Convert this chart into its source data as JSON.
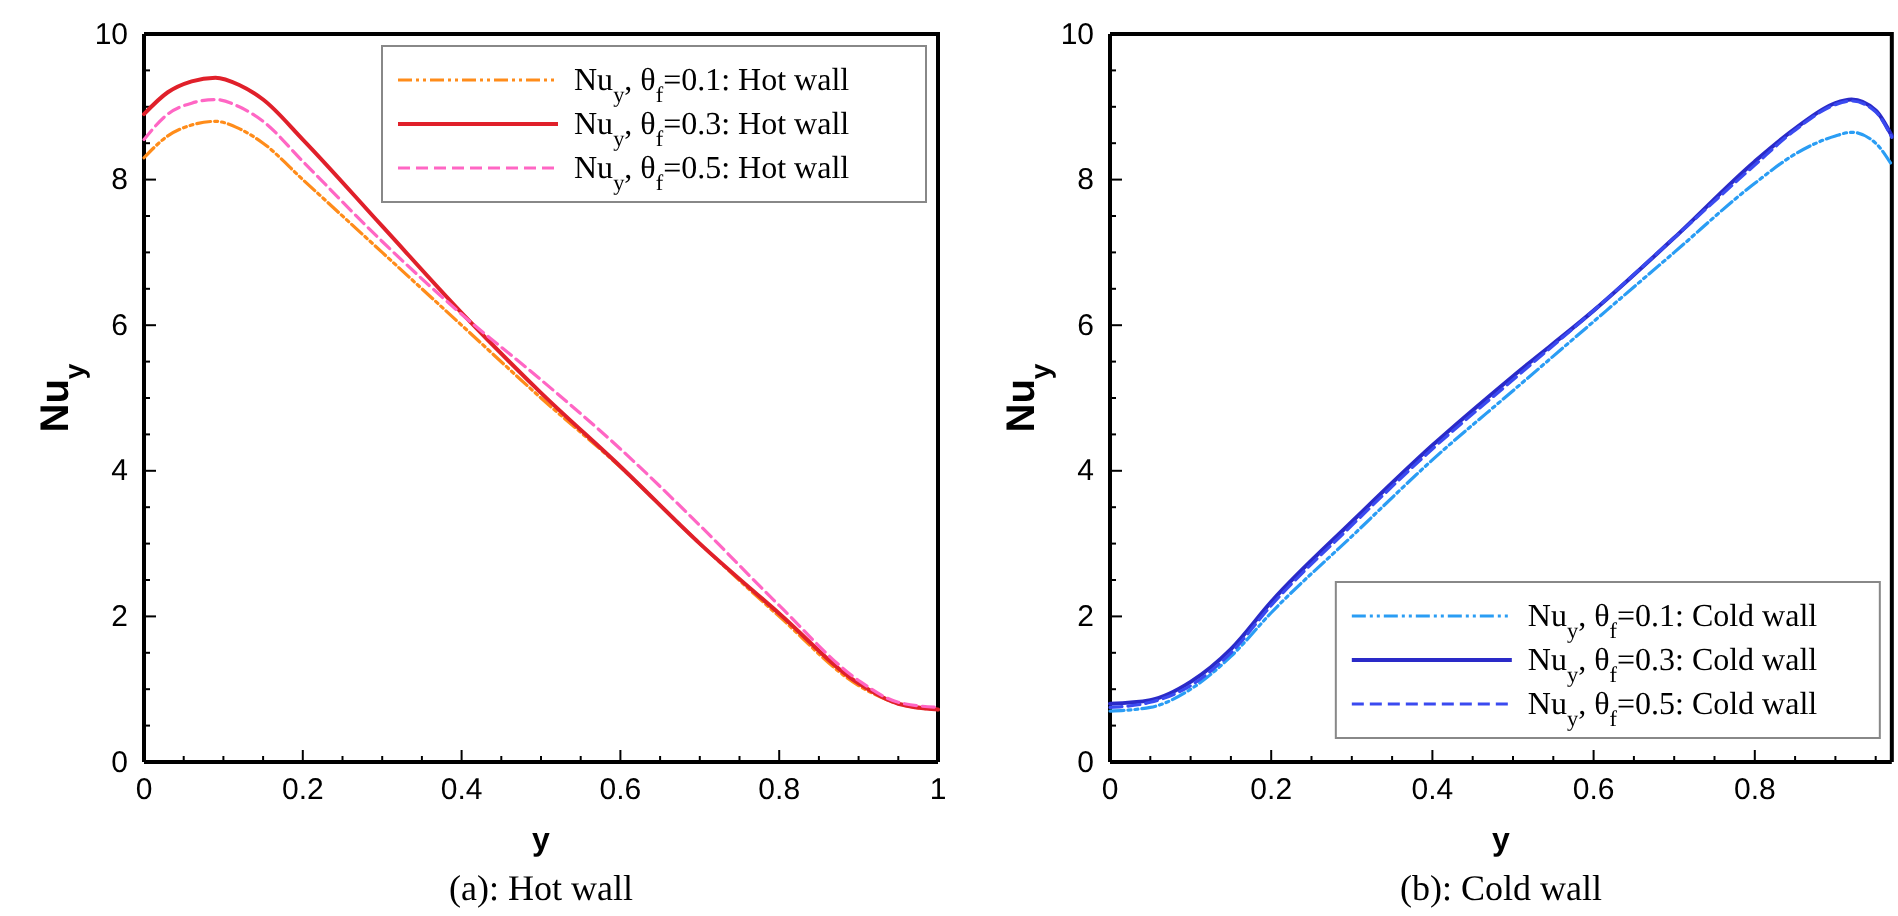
{
  "chart_data": [
    {
      "type": "line",
      "title": "(a): Hot wall",
      "xlabel": "y",
      "ylabel": "Nu$_{y}$",
      "xlim": [
        0,
        1
      ],
      "ylim": [
        0,
        10
      ],
      "xticks": [
        0,
        {
          "value": 0.05,
          "label": null
        },
        {
          "value": 0.1,
          "label": null
        },
        {
          "value": 0.15,
          "label": null
        },
        0.2,
        {
          "value": 0.25,
          "label": null
        },
        {
          "value": 0.3,
          "label": null
        },
        {
          "value": 0.35,
          "label": null
        },
        0.4,
        {
          "value": 0.45,
          "label": null
        },
        {
          "value": 0.5,
          "label": null
        },
        {
          "value": 0.55,
          "label": null
        },
        0.6,
        {
          "value": 0.65,
          "label": null
        },
        {
          "value": 0.7,
          "label": null
        },
        {
          "value": 0.75,
          "label": null
        },
        0.8,
        {
          "value": 0.85,
          "label": null
        },
        {
          "value": 0.9,
          "label": null
        },
        {
          "value": 0.95,
          "label": null
        },
        1
      ],
      "yticks": [
        0,
        {
          "value": 0.5,
          "label": null
        },
        {
          "value": 1,
          "label": null
        },
        {
          "value": 1.5,
          "label": null
        },
        2,
        {
          "value": 2.5,
          "label": null
        },
        {
          "value": 3,
          "label": null
        },
        {
          "value": 3.5,
          "label": null
        },
        4,
        {
          "value": 4.5,
          "label": null
        },
        {
          "value": 5,
          "label": null
        },
        {
          "value": 5.5,
          "label": null
        },
        6,
        {
          "value": 6.5,
          "label": null
        },
        {
          "value": 7,
          "label": null
        },
        {
          "value": 7.5,
          "label": null
        },
        8,
        {
          "value": 8.5,
          "label": null
        },
        {
          "value": 9,
          "label": null
        },
        {
          "value": 9.5,
          "label": null
        },
        10
      ],
      "legend": "top right",
      "grid": false,
      "x": [
        0,
        0.03,
        0.06,
        0.09,
        0.12,
        0.15,
        0.2,
        0.3,
        0.4,
        0.5,
        0.6,
        0.7,
        0.8,
        0.9,
        0.95,
        1
      ],
      "series": [
        {
          "name": "Nu$_{y}$, θ$_{f}$=0.1: Hot wall",
          "color": "#ff8c1a",
          "line_style": "dotted",
          "values": [
            8.3,
            8.6,
            8.75,
            8.8,
            8.7,
            8.5,
            8.0,
            7.0,
            6.0,
            5.0,
            4.05,
            3.0,
            2.0,
            1.05,
            0.8,
            0.72
          ]
        },
        {
          "name": "Nu$_{y}$, θ$_{f}$=0.3: Hot wall",
          "color": "#e0202a",
          "line_style": "solid",
          "values": [
            8.9,
            9.2,
            9.35,
            9.4,
            9.3,
            9.1,
            8.55,
            7.36,
            6.17,
            5.07,
            4.06,
            3.0,
            2.04,
            1.08,
            0.8,
            0.72
          ]
        },
        {
          "name": "Nu$_{y}$, θ$_{f}$=0.5: Hot wall",
          "color": "#ff66c4",
          "line_style": "dashed",
          "values": [
            8.55,
            8.9,
            9.05,
            9.1,
            9.0,
            8.8,
            8.25,
            7.15,
            6.15,
            5.25,
            4.3,
            3.25,
            2.15,
            1.12,
            0.82,
            0.75
          ]
        }
      ]
    },
    {
      "type": "line",
      "title": "(b): Cold wall",
      "xlabel": "y",
      "ylabel": "Nu$_{y}$",
      "xlim": [
        0,
        0.97
      ],
      "ylim": [
        0,
        10
      ],
      "xticks": [
        0,
        {
          "value": 0.05,
          "label": null
        },
        {
          "value": 0.1,
          "label": null
        },
        {
          "value": 0.15,
          "label": null
        },
        0.2,
        {
          "value": 0.25,
          "label": null
        },
        {
          "value": 0.3,
          "label": null
        },
        {
          "value": 0.35,
          "label": null
        },
        0.4,
        {
          "value": 0.45,
          "label": null
        },
        {
          "value": 0.5,
          "label": null
        },
        {
          "value": 0.55,
          "label": null
        },
        0.6,
        {
          "value": 0.65,
          "label": null
        },
        {
          "value": 0.7,
          "label": null
        },
        {
          "value": 0.75,
          "label": null
        },
        0.8,
        {
          "value": 0.85,
          "label": null
        },
        {
          "value": 0.9,
          "label": null
        },
        {
          "value": 0.95,
          "label": null
        }
      ],
      "yticks": [
        0,
        {
          "value": 0.5,
          "label": null
        },
        {
          "value": 1,
          "label": null
        },
        {
          "value": 1.5,
          "label": null
        },
        2,
        {
          "value": 2.5,
          "label": null
        },
        {
          "value": 3,
          "label": null
        },
        {
          "value": 3.5,
          "label": null
        },
        4,
        {
          "value": 4.5,
          "label": null
        },
        {
          "value": 5,
          "label": null
        },
        {
          "value": 5.5,
          "label": null
        },
        6,
        {
          "value": 6.5,
          "label": null
        },
        {
          "value": 7,
          "label": null
        },
        {
          "value": 7.5,
          "label": null
        },
        8,
        {
          "value": 8.5,
          "label": null
        },
        {
          "value": 9,
          "label": null
        },
        {
          "value": 9.5,
          "label": null
        },
        10
      ],
      "legend": "bottom right",
      "grid": false,
      "x": [
        0,
        0.05,
        0.1,
        0.15,
        0.2,
        0.3,
        0.4,
        0.5,
        0.6,
        0.7,
        0.8,
        0.85,
        0.9,
        0.92,
        0.95,
        0.97
      ],
      "series": [
        {
          "name": "Nu$_{y}$, θ$_{f}$=0.1: Cold wall",
          "color": "#2a9df4",
          "line_style": "dotted",
          "values": [
            0.7,
            0.75,
            1.0,
            1.45,
            2.05,
            3.1,
            4.15,
            5.1,
            6.05,
            7.0,
            7.95,
            8.35,
            8.6,
            8.65,
            8.5,
            8.2
          ]
        },
        {
          "name": "Nu$_{y}$, θ$_{f}$=0.3: Cold wall",
          "color": "#2a2ac8",
          "line_style": "solid",
          "values": [
            0.8,
            0.85,
            1.1,
            1.55,
            2.2,
            3.3,
            4.35,
            5.3,
            6.2,
            7.2,
            8.25,
            8.7,
            9.05,
            9.1,
            8.95,
            8.6
          ]
        },
        {
          "name": "Nu$_{y}$, θ$_{f}$=0.5: Cold wall",
          "color": "#3a4af0",
          "line_style": "dashed",
          "values": [
            0.75,
            0.82,
            1.05,
            1.5,
            2.15,
            3.25,
            4.3,
            5.25,
            6.2,
            7.2,
            8.2,
            8.68,
            9.03,
            9.08,
            8.93,
            8.58
          ]
        }
      ]
    }
  ]
}
